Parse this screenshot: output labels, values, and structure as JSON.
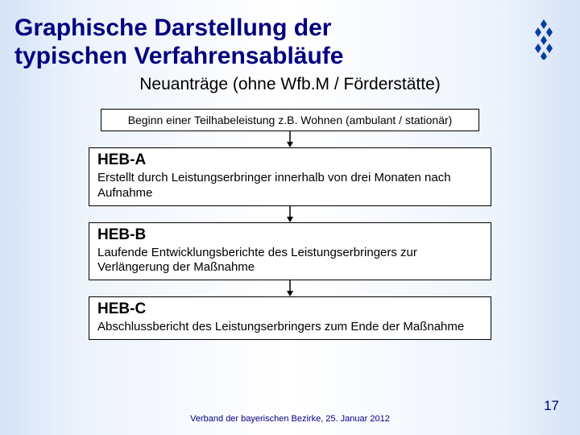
{
  "title_line1": "Graphische Darstellung der",
  "title_line2": "typischen Verfahrensabläufe",
  "title_fontsize": 30,
  "title_color": "#000080",
  "subtitle": "Neuanträge (ohne Wfb.M / Förderstätte)",
  "subtitle_fontsize": 21,
  "subtitle_color": "#000000",
  "start": {
    "text": "Beginn einer Teilhabeleistung z.B. Wohnen (ambulant / stationär)",
    "fontsize": 14,
    "border_color": "#000000"
  },
  "stages": [
    {
      "title": "HEB-A",
      "desc": "Erstellt durch Leistungserbringer innerhalb von drei Monaten nach Aufnahme"
    },
    {
      "title": "HEB-B",
      "desc": "Laufende Entwicklungsberichte des Leistungserbringers zur Verlängerung der Maßnahme"
    },
    {
      "title": "HEB-C",
      "desc": "Abschlussbericht des Leistungserbringers zum Ende der Maßnahme"
    }
  ],
  "stage_title_fontsize": 19,
  "stage_desc_fontsize": 15,
  "box_border_color": "#000000",
  "box_background": "#ffffff",
  "arrow_color": "#000000",
  "arrow_height": 20,
  "footer": "Verband der bayerischen Bezirke, 25. Januar 2012",
  "footer_fontsize": 11,
  "footer_color": "#000080",
  "page_number": "17",
  "page_number_fontsize": 17,
  "logo": {
    "diamond_color": "#0b3aa0",
    "width": 34,
    "height": 50
  }
}
